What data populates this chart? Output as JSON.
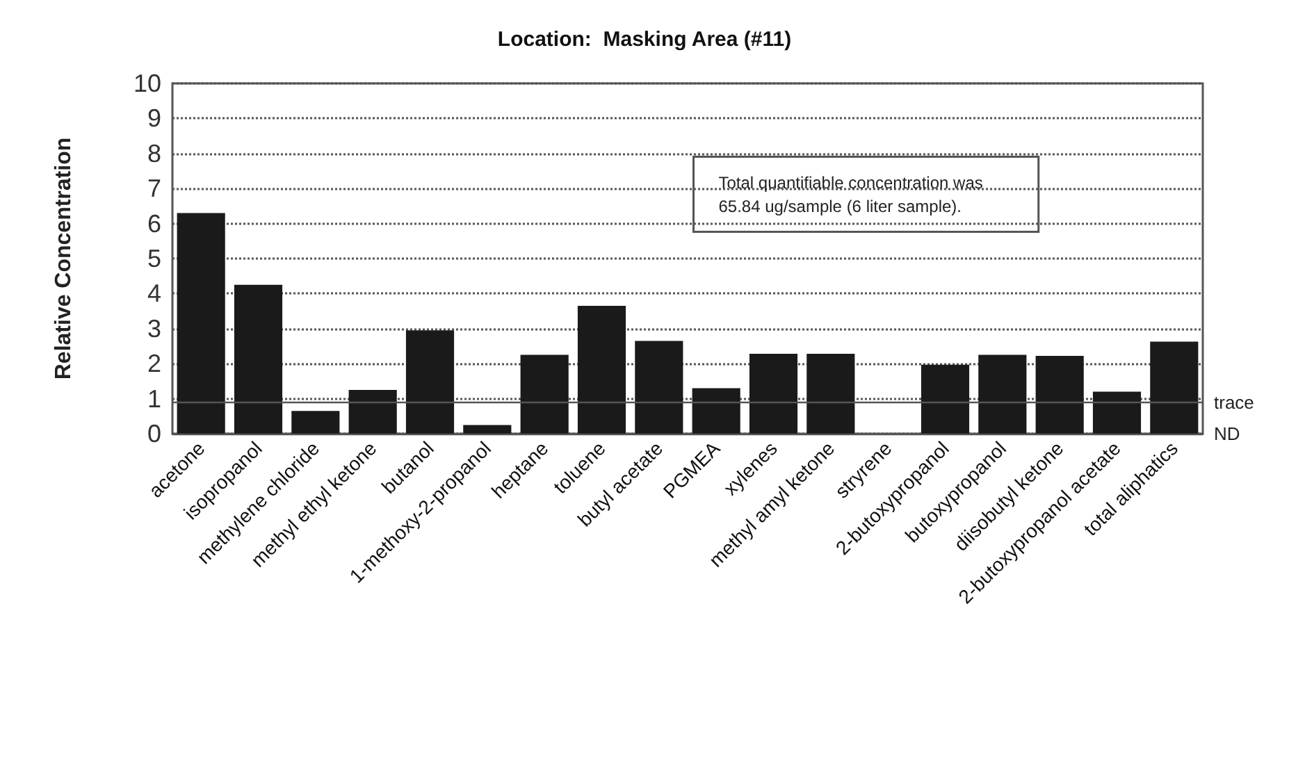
{
  "chart_data": {
    "type": "bar",
    "title": "Location:  Masking Area (#11)",
    "ylabel": "Relative Concentration",
    "categories": [
      "acetone",
      "isopropanol",
      "methylene chloride",
      "methyl ethyl ketone",
      "butanol",
      "1-methoxy-2-propanol",
      "heptane",
      "toluene",
      "butyl acetate",
      "PGMEA",
      "xylenes",
      "methyl amyl ketone",
      "stryrene",
      "2-butoxypropanol",
      "butoxypropanol",
      "diisobutyl ketone",
      "2-butoxypropanol acetate",
      "total aliphatics"
    ],
    "values": [
      6.3,
      4.25,
      0.65,
      1.25,
      2.95,
      0.25,
      2.25,
      3.65,
      2.65,
      1.3,
      2.28,
      2.28,
      0,
      1.97,
      2.25,
      2.22,
      1.2,
      2.63
    ],
    "color": "#1a1a1a",
    "ylim": [
      0,
      10
    ],
    "yticks": [
      0,
      1,
      2,
      3,
      4,
      5,
      6,
      7,
      8,
      9,
      10
    ],
    "grid": "y",
    "ref_lines": [
      {
        "axis": "y",
        "value": 0.9,
        "label": "trace",
        "color": "#555555",
        "line_style": "solid"
      },
      {
        "axis": "y",
        "value": 0,
        "label": "ND",
        "color": "#555555",
        "line_style": "solid"
      }
    ],
    "annotations": [
      "Total quantifiable concentration was\n65.84 ug/sample (6 liter sample)."
    ]
  }
}
